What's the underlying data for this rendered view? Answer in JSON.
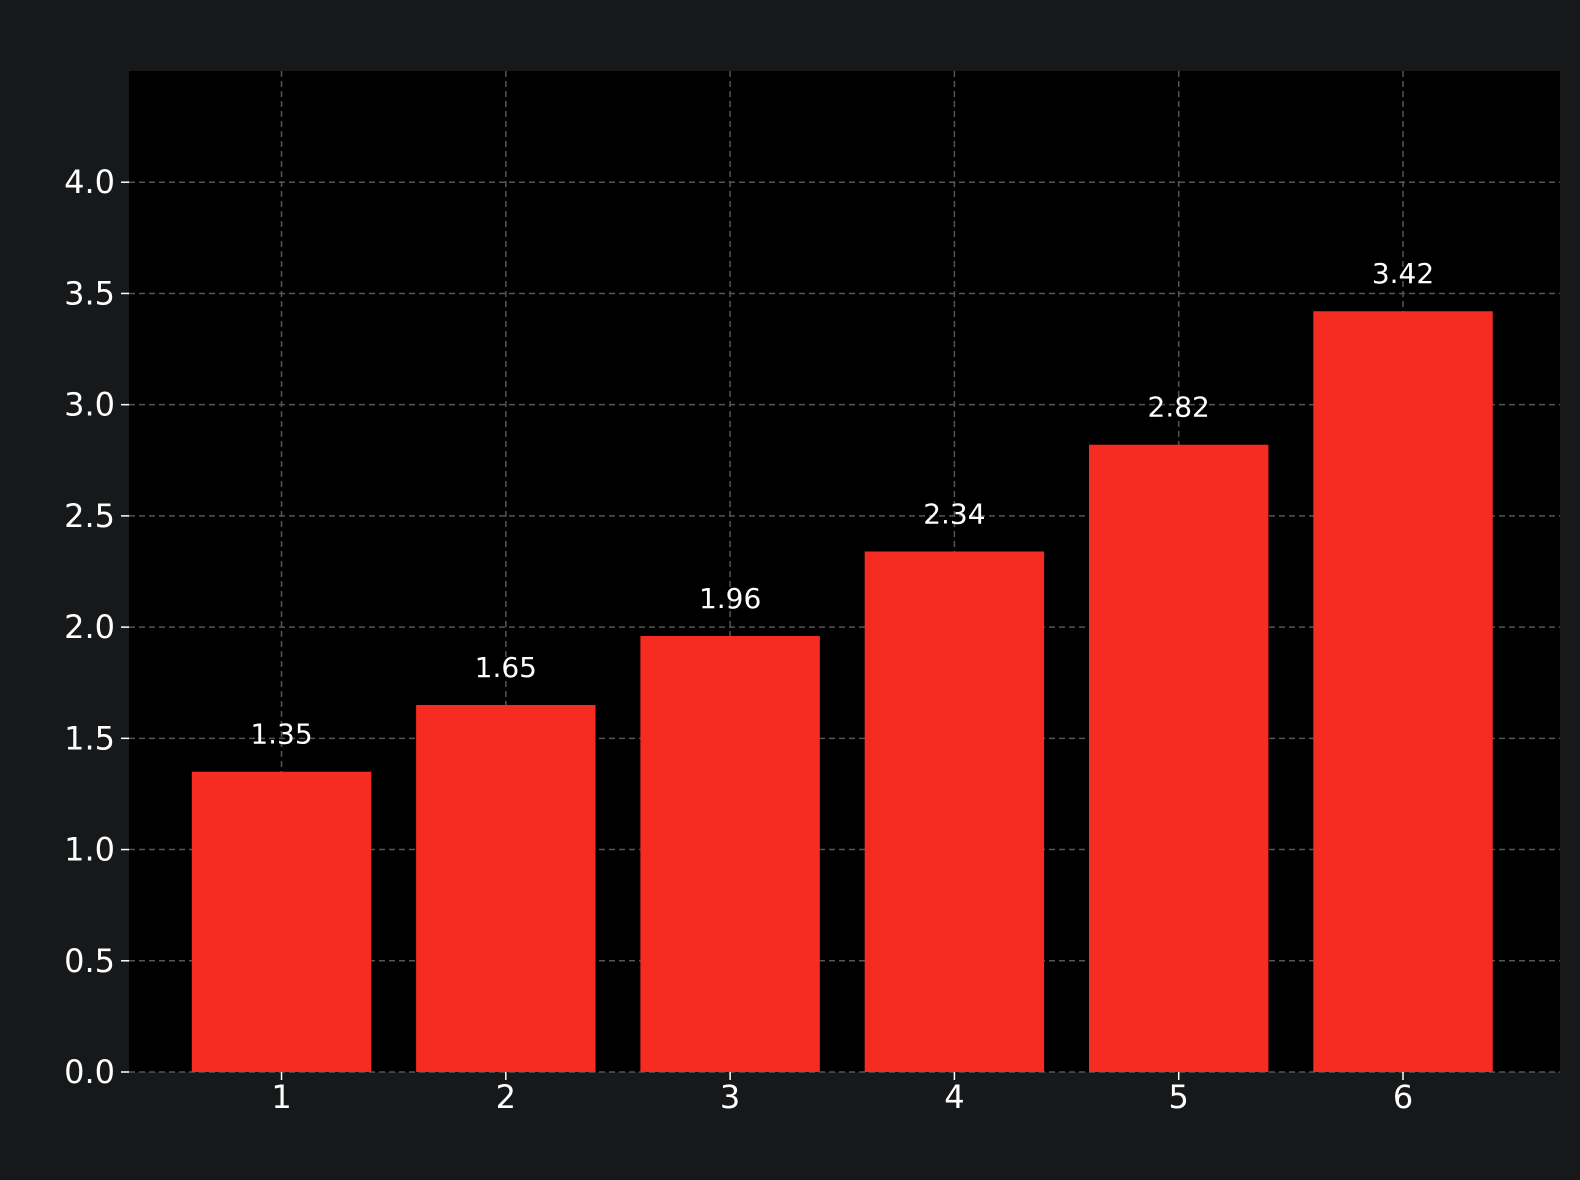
{
  "colors": {
    "figure_background": "#17181a",
    "plot_background": "#000000",
    "bar": "#f62b22",
    "text": "#ffffff",
    "grid": "#555555"
  },
  "chart_data": {
    "type": "bar",
    "title": "",
    "xlabel": "",
    "ylabel": "",
    "categories": [
      "1",
      "2",
      "3",
      "4",
      "5",
      "6"
    ],
    "values": [
      1.35,
      1.65,
      1.96,
      2.34,
      2.82,
      3.42
    ],
    "value_labels": [
      "1.35",
      "1.65",
      "1.96",
      "2.34",
      "2.82",
      "3.42"
    ],
    "ylim": [
      0,
      4.5
    ],
    "yticks": [
      0.0,
      0.5,
      1.0,
      1.5,
      2.0,
      2.5,
      3.0,
      3.5,
      4.0
    ],
    "ytick_labels": [
      "0.0",
      "0.5",
      "1.0",
      "1.5",
      "2.0",
      "2.5",
      "3.0",
      "3.5",
      "4.0"
    ],
    "grid": true,
    "grid_style": "dashed",
    "legend": false
  }
}
